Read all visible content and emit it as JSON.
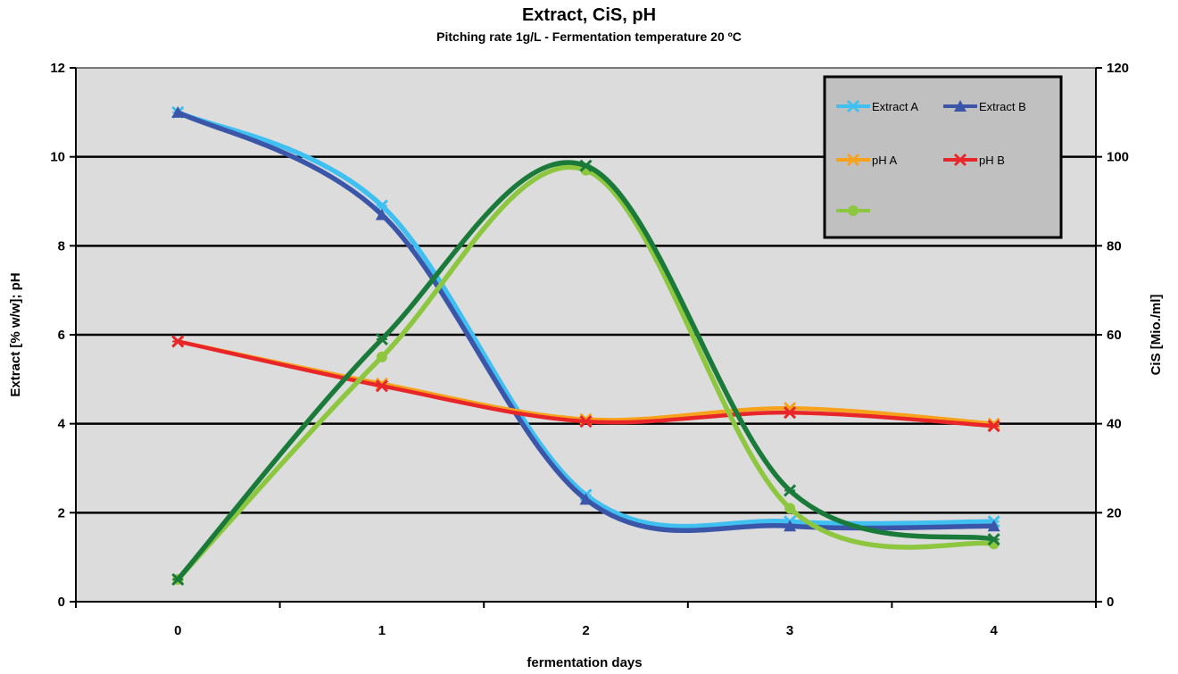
{
  "chart_data": {
    "type": "line",
    "title": "Extract, CiS, pH",
    "subtitle": "Pitching rate 1g/L  - Fermentation  temperature  20 ºC",
    "xlabel": "fermentation days",
    "ylabel_left": "Extract [% w/w]; pH",
    "ylabel_right": "CiS [Mio./ml]",
    "x": [
      0,
      1,
      2,
      3,
      4
    ],
    "x_ticks": [
      "0",
      "1",
      "2",
      "3",
      "4"
    ],
    "ylim_left": [
      0,
      12
    ],
    "yticks_left": [
      "0",
      "2",
      "4",
      "6",
      "8",
      "10",
      "12"
    ],
    "ylim_right": [
      0,
      120
    ],
    "yticks_right": [
      "0",
      "20",
      "40",
      "60",
      "80",
      "100",
      "120"
    ],
    "grid": true,
    "legend_position": "top-right",
    "plot_background": "#dcdcdc",
    "series": [
      {
        "name": "Extract A",
        "axis": "left",
        "color": "#3fc0f0",
        "marker": "x",
        "values": [
          11.0,
          8.9,
          2.4,
          1.8,
          1.8
        ]
      },
      {
        "name": "Extract B",
        "axis": "left",
        "color": "#3b55a8",
        "marker": "triangle",
        "values": [
          11.0,
          8.7,
          2.3,
          1.7,
          1.7
        ]
      },
      {
        "name": "pH A",
        "axis": "left",
        "color": "#f7a21b",
        "marker": "x",
        "values": [
          5.85,
          4.9,
          4.1,
          4.35,
          4.0
        ]
      },
      {
        "name": "pH B",
        "axis": "left",
        "color": "#e8262a",
        "marker": "x",
        "values": [
          5.85,
          4.85,
          4.05,
          4.25,
          3.95
        ]
      },
      {
        "name": "",
        "axis": "right",
        "color": "#8dc63f",
        "marker": "circle",
        "values": [
          5,
          55,
          97,
          21,
          13
        ]
      },
      {
        "name": "",
        "axis": "right",
        "color": "#1a7a3a",
        "marker": "x",
        "values": [
          5,
          59,
          98,
          25,
          14
        ]
      }
    ]
  }
}
